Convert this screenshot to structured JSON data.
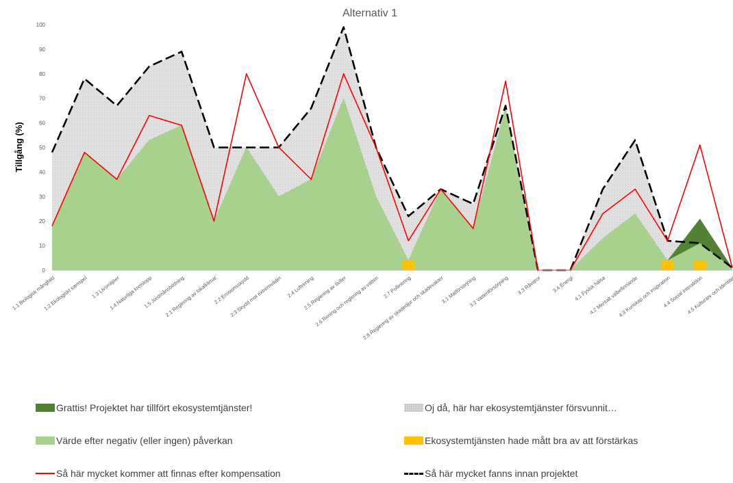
{
  "chart_data": {
    "type": "area",
    "title": "Alternativ 1",
    "xlabel": "",
    "ylabel": "Tillgång (%)",
    "ylim": [
      0,
      100
    ],
    "yticks": [
      0,
      10,
      20,
      30,
      40,
      50,
      60,
      70,
      80,
      90,
      100
    ],
    "grid": false,
    "legend_position": "bottom",
    "categories": [
      "1.1 Biologisk mångfald",
      "1.2 Ekologiskt samspel",
      "1.3 Livsmiljöer",
      "1.4 Naturliga kretslopp",
      "1.5 Jordmånsbildning",
      "2.1 Reglering av lokalklimat",
      "2.2 Erosionsskydd",
      "2.3 Skydd mot extremväder",
      "2.4 Luftrening",
      "2.5 Reglering av buller",
      "2.6 Rening och reglering av vatten",
      "2.7 Pollinering",
      "2.8 Reglering av skadedjur och skadevakter",
      "3.1 Matförsörjning",
      "3.2 Vattenförsörjning",
      "3.3 Råvaror",
      "3.4 Energi",
      "4.1 Fysisk hälsa",
      "4.2 Mentalt välbefinnande",
      "4.3 Kunskap och inspiration",
      "4.4 Social interaktion",
      "4.5 Kulturarv och identitet"
    ],
    "series": [
      {
        "name": "Grattis! Projektet har tillfört ekosystemtjänster!",
        "kind": "gain",
        "values": [
          18,
          48,
          37,
          53,
          59,
          20,
          50,
          30,
          37,
          70,
          30,
          4,
          33,
          17,
          66,
          0,
          0,
          13,
          23,
          4,
          21,
          1
        ]
      },
      {
        "name": "Oj då, här har ekosystemtjänster försvunnit…",
        "kind": "loss",
        "values": [
          48,
          78,
          67,
          83,
          89,
          50,
          50,
          50,
          66,
          99,
          50,
          22,
          33,
          27,
          67,
          0,
          0,
          33,
          53,
          12,
          11,
          1
        ]
      },
      {
        "name": "Värde efter negativ (eller ingen) påverkan",
        "kind": "value",
        "values": [
          18,
          48,
          37,
          53,
          59,
          20,
          50,
          30,
          37,
          70,
          30,
          4,
          33,
          17,
          66,
          0,
          0,
          13,
          23,
          4,
          11,
          1
        ]
      },
      {
        "name": "Ekosystemtjänsten hade mått bra av att förstärkas",
        "kind": "reinforce",
        "values": [
          null,
          null,
          null,
          null,
          null,
          null,
          null,
          null,
          null,
          null,
          null,
          4,
          null,
          null,
          null,
          null,
          null,
          null,
          null,
          4,
          4,
          null
        ]
      },
      {
        "name": "Så här mycket kommer att finnas efter kompensation",
        "kind": "after",
        "values": [
          18,
          48,
          37,
          63,
          59,
          20,
          80,
          50,
          37,
          80,
          50,
          12,
          33,
          17,
          77,
          0,
          0,
          23,
          33,
          12,
          51,
          1
        ]
      },
      {
        "name": "Så här mycket fanns innan projektet",
        "kind": "before",
        "values": [
          48,
          78,
          67,
          83,
          89,
          50,
          50,
          50,
          66,
          99,
          50,
          22,
          33,
          27,
          67,
          0,
          0,
          33,
          53,
          12,
          11,
          1
        ]
      }
    ],
    "colors": {
      "gain": "#548235",
      "loss": "#d9d9d9",
      "value": "#a9d18e",
      "reinforce": "#ffc000",
      "after": "#ff0000",
      "before": "#000000"
    }
  }
}
